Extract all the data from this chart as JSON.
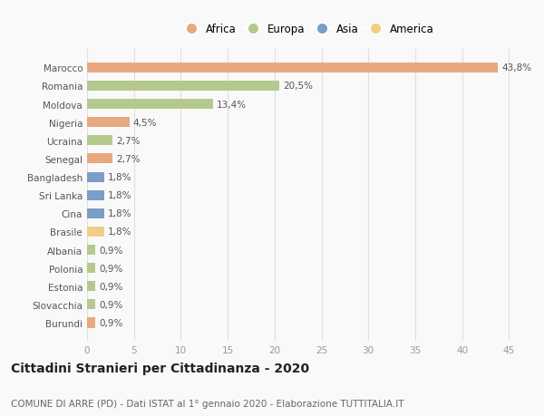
{
  "countries": [
    "Marocco",
    "Romania",
    "Moldova",
    "Nigeria",
    "Ucraina",
    "Senegal",
    "Bangladesh",
    "Sri Lanka",
    "Cina",
    "Brasile",
    "Albania",
    "Polonia",
    "Estonia",
    "Slovacchia",
    "Burundi"
  ],
  "values": [
    43.8,
    20.5,
    13.4,
    4.5,
    2.7,
    2.7,
    1.8,
    1.8,
    1.8,
    1.8,
    0.9,
    0.9,
    0.9,
    0.9,
    0.9
  ],
  "labels": [
    "43,8%",
    "20,5%",
    "13,4%",
    "4,5%",
    "2,7%",
    "2,7%",
    "1,8%",
    "1,8%",
    "1,8%",
    "1,8%",
    "0,9%",
    "0,9%",
    "0,9%",
    "0,9%",
    "0,9%"
  ],
  "continents": [
    "Africa",
    "Europa",
    "Europa",
    "Africa",
    "Europa",
    "Africa",
    "Asia",
    "Asia",
    "Asia",
    "America",
    "Europa",
    "Europa",
    "Europa",
    "Europa",
    "Africa"
  ],
  "colors": {
    "Africa": "#E8A97E",
    "Europa": "#B5C98E",
    "Asia": "#7B9EC7",
    "America": "#F0CF85"
  },
  "legend_order": [
    "Africa",
    "Europa",
    "Asia",
    "America"
  ],
  "title": "Cittadini Stranieri per Cittadinanza - 2020",
  "subtitle": "COMUNE DI ARRE (PD) - Dati ISTAT al 1° gennaio 2020 - Elaborazione TUTTITALIA.IT",
  "xlim": [
    0,
    47
  ],
  "xticks": [
    0,
    5,
    10,
    15,
    20,
    25,
    30,
    35,
    40,
    45
  ],
  "background_color": "#f9f9f9",
  "bar_height": 0.55,
  "grid_color": "#e0e0e0",
  "label_fontsize": 7.5,
  "tick_fontsize": 7.5,
  "title_fontsize": 10,
  "subtitle_fontsize": 7.5
}
